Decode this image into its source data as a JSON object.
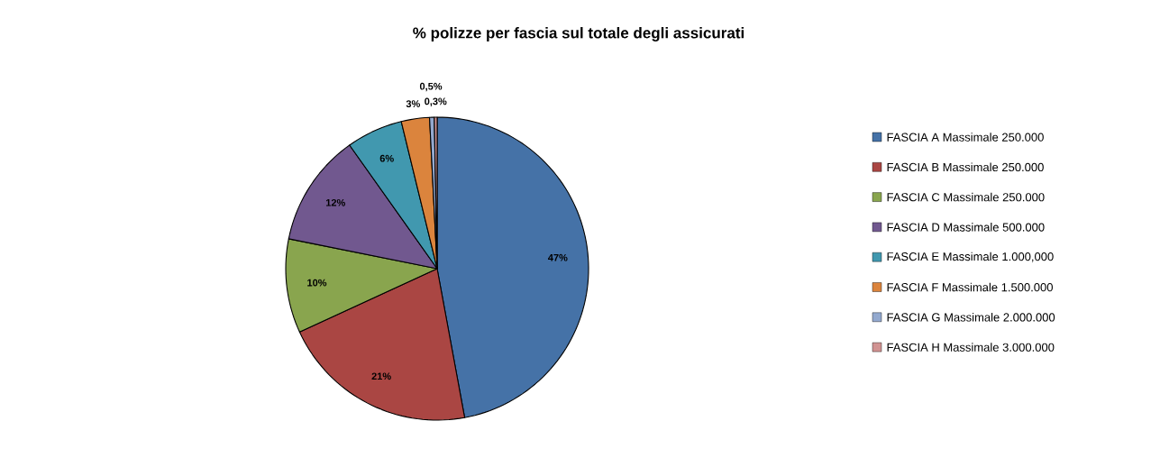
{
  "chart_data": {
    "type": "pie",
    "title": "% polizze per fascia sul totale degli assicurati",
    "categories": [
      "FASCIA A    Massimale 250.000",
      "FASCIA B    Massimale 250.000",
      "FASCIA C    Massimale 250.000",
      "FASCIA D   Massimale 500.000",
      "FASCIA E    Massimale 1.000,000",
      "FASCIA F   Massimale 1.500.000",
      "FASCIA G    Massimale 2.000.000",
      "FASCIA H    Massimale 3.000.000"
    ],
    "values": [
      47,
      21,
      10,
      12,
      6,
      3,
      0.5,
      0.3
    ],
    "value_labels": [
      "47%",
      "21%",
      "10%",
      "12%",
      "6%",
      "3%",
      "0,5%",
      "0,3%"
    ],
    "colors": [
      "#4572a7",
      "#aa4643",
      "#89a54e",
      "#71588f",
      "#4198af",
      "#db843d",
      "#93a9cf",
      "#d19392"
    ],
    "legend": "right"
  }
}
